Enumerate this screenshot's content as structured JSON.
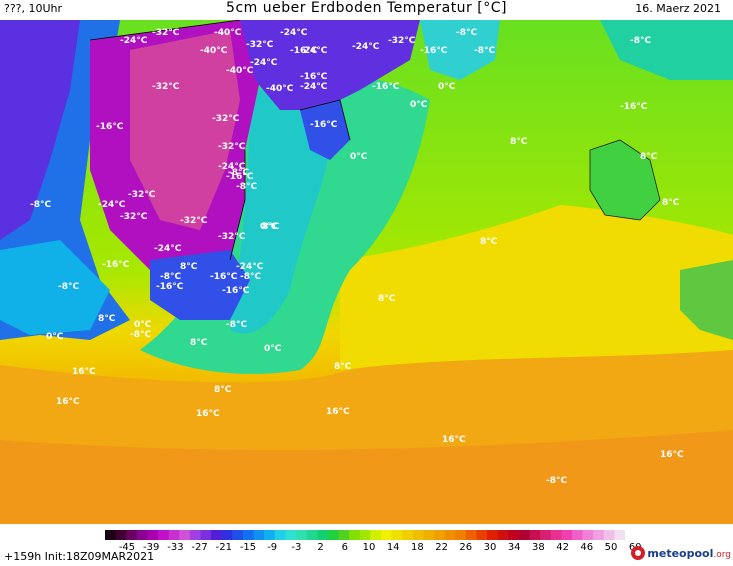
{
  "header": {
    "left": "???, 10Uhr",
    "title": "5cm ueber Erdboden Temperatur [°C]",
    "right": "16. Maerz 2021"
  },
  "map": {
    "labels": [
      {
        "text": "-32°C"
      },
      {
        "text": "-40°C"
      },
      {
        "text": "-24°C"
      },
      {
        "text": "-24°C"
      },
      {
        "text": "-8°C"
      },
      {
        "text": "-24°C"
      },
      {
        "text": "-40°C"
      },
      {
        "text": "-32°C"
      },
      {
        "text": "-16°C"
      },
      {
        "text": "-32°C"
      },
      {
        "text": "-24°C"
      },
      {
        "text": "-16°C"
      },
      {
        "text": "-40°C"
      },
      {
        "text": "-16°C"
      },
      {
        "text": "-24°C"
      },
      {
        "text": "-8°C"
      },
      {
        "text": "-24°C"
      },
      {
        "text": "-16°C"
      },
      {
        "text": "-32°C"
      },
      {
        "text": "0°C"
      },
      {
        "text": "-8°C"
      },
      {
        "text": "-16°C"
      },
      {
        "text": "-40°C"
      },
      {
        "text": "0°C"
      },
      {
        "text": "-16°C"
      },
      {
        "text": "-32°C"
      },
      {
        "text": "-32°C"
      },
      {
        "text": "-16°C"
      },
      {
        "text": "-24°C"
      },
      {
        "text": "0°C"
      },
      {
        "text": "-8°C"
      },
      {
        "text": "8°C"
      },
      {
        "text": "-16°C"
      },
      {
        "text": "-8°C"
      },
      {
        "text": "8°C"
      },
      {
        "text": "-8°C"
      },
      {
        "text": "-32°C"
      },
      {
        "text": "-24°C"
      },
      {
        "text": "-32°C"
      },
      {
        "text": "-32°C"
      },
      {
        "text": "8°C"
      },
      {
        "text": "0°C"
      },
      {
        "text": "-32°C"
      },
      {
        "text": "8°C"
      },
      {
        "text": "-24°C"
      },
      {
        "text": "8°C"
      },
      {
        "text": "-16°C"
      },
      {
        "text": "-8°C"
      },
      {
        "text": "-24°C"
      },
      {
        "text": "8°C"
      },
      {
        "text": "-16°C"
      },
      {
        "text": "-16°C"
      },
      {
        "text": "-8°C"
      },
      {
        "text": "-16°C"
      },
      {
        "text": "-8°C"
      },
      {
        "text": "8°C"
      },
      {
        "text": "0°C"
      },
      {
        "text": "-8°C"
      },
      {
        "text": "-8°C"
      },
      {
        "text": "0°C"
      },
      {
        "text": "0°C"
      },
      {
        "text": "8°C"
      },
      {
        "text": "8°C"
      },
      {
        "text": "16°C"
      },
      {
        "text": "8°C"
      },
      {
        "text": "16°C"
      },
      {
        "text": "16°C"
      },
      {
        "text": "16°C"
      },
      {
        "text": "16°C"
      },
      {
        "text": "16°C"
      },
      {
        "text": "-8°C"
      },
      {
        "text": "8°C"
      }
    ]
  },
  "colorbar": {
    "ticks": [
      "-45",
      "-39",
      "-33",
      "-27",
      "-21",
      "-15",
      "-9",
      "-3",
      "2",
      "6",
      "10",
      "14",
      "18",
      "22",
      "26",
      "30",
      "34",
      "38",
      "42",
      "46",
      "50",
      "60"
    ],
    "colors": [
      "#1a0010",
      "#400030",
      "#6a0060",
      "#8a0090",
      "#a800b0",
      "#c010c8",
      "#c830d0",
      "#d050d8",
      "#a040e0",
      "#7a30e0",
      "#5020d8",
      "#3030e0",
      "#2050e8",
      "#1070f0",
      "#1090f0",
      "#10b0f0",
      "#20d0e8",
      "#30e0d0",
      "#30e0b0",
      "#20d890",
      "#10d070",
      "#20d040",
      "#50d020",
      "#80e000",
      "#a0e800",
      "#d0f000",
      "#f0f000",
      "#f0e000",
      "#f0d000",
      "#f0c000",
      "#f0b000",
      "#f0a000",
      "#f09000",
      "#f08000",
      "#f06000",
      "#e84000",
      "#e02000",
      "#d01010",
      "#c00020",
      "#b00030",
      "#c81050",
      "#d82070",
      "#e83090",
      "#f040b0",
      "#f060c8",
      "#f080d8",
      "#f0a0e0",
      "#f0c0e8",
      "#f0e0f0"
    ]
  },
  "footer": {
    "init": "+159h  Init:18Z09MAR2021",
    "logo_name": "meteopool",
    "logo_tld": ".org"
  },
  "colors": {
    "ocean_warm": "#f29a18",
    "ocean_mid": "#f2c800",
    "ocean_cool": "#8ee000",
    "coast_cold": "#10d070",
    "greenland_cold": "#9810b8",
    "canada_cold": "#5a30e0"
  }
}
